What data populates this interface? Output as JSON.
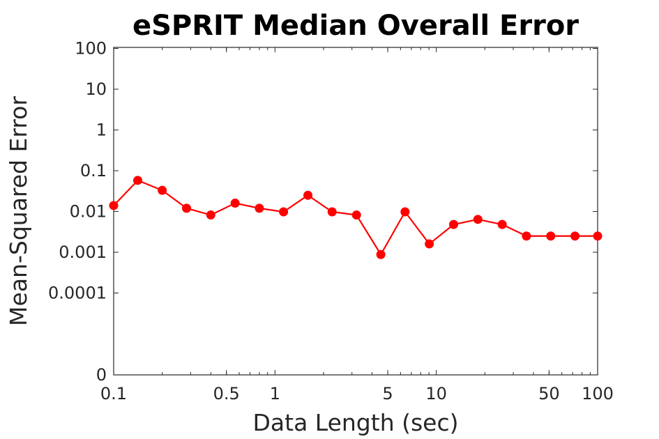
{
  "chart_data": {
    "type": "line",
    "title": "eSPRIT Median Overall Error",
    "xlabel": "Data Length (sec)",
    "ylabel": "Mean-Squared Error",
    "xscale": "log",
    "yscale": "log",
    "xlim": [
      0.1,
      100
    ],
    "ylim": [
      1e-06,
      100
    ],
    "grid": false,
    "legend": "none",
    "x_ticks": [
      {
        "value": 0.1,
        "label": "0.1"
      },
      {
        "value": 0.5,
        "label": "0.5"
      },
      {
        "value": 1,
        "label": "1"
      },
      {
        "value": 5,
        "label": "5"
      },
      {
        "value": 10,
        "label": "10"
      },
      {
        "value": 50,
        "label": "50"
      },
      {
        "value": 100,
        "label": "100"
      }
    ],
    "y_ticks": [
      {
        "value": 1e-06,
        "label": "0"
      },
      {
        "value": 0.0001,
        "label": "0.0001"
      },
      {
        "value": 0.001,
        "label": "0.001"
      },
      {
        "value": 0.01,
        "label": "0.01"
      },
      {
        "value": 0.1,
        "label": "0.1"
      },
      {
        "value": 1,
        "label": "1"
      },
      {
        "value": 10,
        "label": "10"
      },
      {
        "value": 100,
        "label": "100"
      }
    ],
    "series": [
      {
        "color": "#ff0000",
        "marker": "circle",
        "x": [
          0.1,
          0.141,
          0.2,
          0.283,
          0.4,
          0.566,
          0.8,
          1.13,
          1.6,
          2.26,
          3.2,
          4.53,
          6.4,
          9.05,
          12.8,
          18.1,
          25.6,
          36.2,
          51.2,
          72.4,
          102.4
        ],
        "y": [
          0.014,
          0.058,
          0.033,
          0.012,
          0.0082,
          0.016,
          0.012,
          0.0098,
          0.025,
          0.0098,
          0.0082,
          0.00088,
          0.0098,
          0.0016,
          0.0048,
          0.0064,
          0.0048,
          0.0025,
          0.0025,
          0.0025,
          0.0025
        ]
      }
    ]
  }
}
